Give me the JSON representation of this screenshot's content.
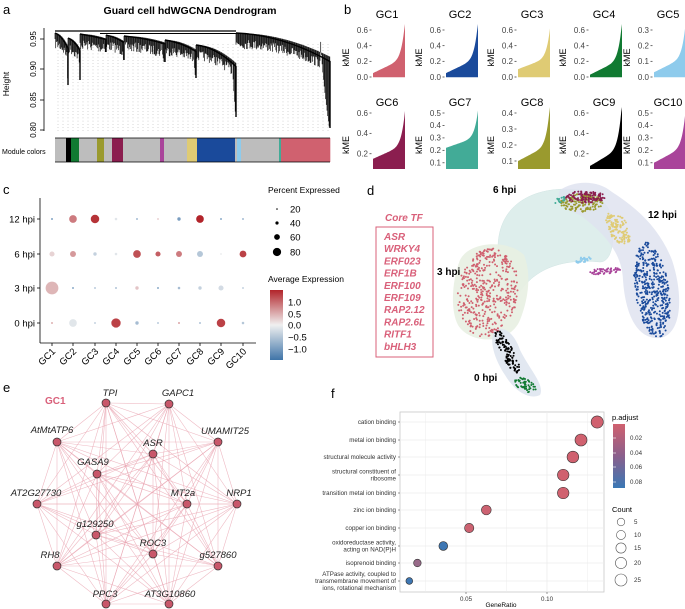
{
  "panel_labels": {
    "a": "a",
    "b": "b",
    "c": "c",
    "d": "d",
    "e": "e",
    "f": "f"
  },
  "panel_a": {
    "title": "Guard cell hdWGCNA Dendrogram",
    "ylabel": "Height",
    "yticks": [
      "0.95",
      "0.90",
      "0.85",
      "0.80"
    ],
    "module_colors_label": "Module colors",
    "module_bar": [
      {
        "color": "#bdbdbd",
        "span": 11
      },
      {
        "color": "#000000",
        "span": 5
      },
      {
        "color": "#117a32",
        "span": 8
      },
      {
        "color": "#bdbdbd",
        "span": 18
      },
      {
        "color": "#9a9a2e",
        "span": 7
      },
      {
        "color": "#bdbdbd",
        "span": 8
      },
      {
        "color": "#8b1e4f",
        "span": 11
      },
      {
        "color": "#bdbdbd",
        "span": 37
      },
      {
        "color": "#a9449a",
        "span": 4
      },
      {
        "color": "#bdbdbd",
        "span": 23
      },
      {
        "color": "#dfcb74",
        "span": 10
      },
      {
        "color": "#1a4a9b",
        "span": 38
      },
      {
        "color": "#bdbdbd",
        "span": 2
      },
      {
        "color": "#8ecbec",
        "span": 4
      },
      {
        "color": "#bdbdbd",
        "span": 38
      },
      {
        "color": "#42ab97",
        "span": 2
      },
      {
        "color": "#d0616f",
        "span": 49
      }
    ]
  },
  "panel_b": {
    "ylabel": "kME",
    "modules": [
      {
        "name": "GC1",
        "color": "#d0616f",
        "yticks": [
          "0.0",
          "0.2",
          "0.4",
          "0.6"
        ],
        "ylim": [
          0,
          0.7
        ],
        "kME_range": [
          0.05,
          0.7
        ]
      },
      {
        "name": "GC2",
        "color": "#1a4a9b",
        "yticks": [
          "0.0",
          "0.2",
          "0.4",
          "0.6"
        ],
        "ylim": [
          0,
          0.7
        ],
        "kME_range": [
          0.05,
          0.7
        ]
      },
      {
        "name": "GC3",
        "color": "#dfcb74",
        "yticks": [
          "0.0",
          "0.2",
          "0.4",
          "0.6"
        ],
        "ylim": [
          0,
          0.65
        ],
        "kME_range": [
          0.1,
          0.62
        ]
      },
      {
        "name": "GC4",
        "color": "#117a32",
        "yticks": [
          "0.0",
          "0.2",
          "0.4",
          "0.6"
        ],
        "ylim": [
          0,
          0.7
        ],
        "kME_range": [
          0.03,
          0.7
        ]
      },
      {
        "name": "GC5",
        "color": "#8ecbec",
        "yticks": [
          "0.0",
          "0.1",
          "0.2",
          "0.3"
        ],
        "ylim": [
          0,
          0.37
        ],
        "kME_range": [
          0.03,
          0.37
        ]
      },
      {
        "name": "GC6",
        "color": "#8b1e4f",
        "yticks": [
          "0.2",
          "0.4",
          "0.6"
        ],
        "ylim": [
          0.05,
          0.62
        ],
        "kME_range": [
          0.15,
          0.62
        ]
      },
      {
        "name": "GC7",
        "color": "#42ab97",
        "yticks": [
          "0.1",
          "0.2",
          "0.3",
          "0.4",
          "0.5"
        ],
        "ylim": [
          0.05,
          0.52
        ],
        "kME_range": [
          0.22,
          0.52
        ]
      },
      {
        "name": "GC8",
        "color": "#9a9a2e",
        "yticks": [
          "0.1",
          "0.2",
          "0.3",
          "0.4"
        ],
        "ylim": [
          0.05,
          0.45
        ],
        "kME_range": [
          0.1,
          0.45
        ]
      },
      {
        "name": "GC9",
        "color": "#000000",
        "yticks": [
          "0.2",
          "0.4",
          "0.6"
        ],
        "ylim": [
          0.05,
          0.7
        ],
        "kME_range": [
          0.08,
          0.7
        ]
      },
      {
        "name": "GC10",
        "color": "#a9449a",
        "yticks": [
          "0.1",
          "0.2",
          "0.3",
          "0.4",
          "0.5"
        ],
        "ylim": [
          0.05,
          0.56
        ],
        "kME_range": [
          0.1,
          0.56
        ]
      }
    ]
  },
  "chart_data": [
    {
      "type": "scatter",
      "panel": "c",
      "categories": [
        "GC1",
        "GC2",
        "GC3",
        "GC4",
        "GC5",
        "GC6",
        "GC7",
        "GC8",
        "GC9",
        "GC10"
      ],
      "rows": [
        "12 hpi",
        "6 hpi",
        "3 hpi",
        "0 hpi"
      ],
      "avg_expression": [
        [
          -1.0,
          0.8,
          1.3,
          -0.1,
          -0.7,
          0.3,
          -0.8,
          1.4,
          -0.9,
          -0.7
        ],
        [
          0.2,
          0.6,
          -0.3,
          -0.1,
          1.1,
          1.0,
          0.8,
          -0.4,
          -0.05,
          1.2
        ],
        [
          0.4,
          -0.9,
          -0.5,
          -0.6,
          0.3,
          -0.9,
          -0.5,
          -0.3,
          -0.2,
          -0.4
        ],
        [
          0.6,
          -0.1,
          -0.4,
          1.2,
          -0.5,
          -0.5,
          0.7,
          -0.6,
          1.2,
          -0.4
        ]
      ],
      "percent_expressed": [
        [
          15,
          60,
          65,
          30,
          25,
          20,
          35,
          60,
          12,
          18
        ],
        [
          45,
          50,
          35,
          30,
          60,
          45,
          50,
          50,
          20,
          55
        ],
        [
          90,
          8,
          4,
          5,
          35,
          18,
          30,
          35,
          45,
          20
        ],
        [
          25,
          60,
          20,
          70,
          35,
          18,
          18,
          18,
          65,
          30
        ]
      ],
      "size_legend": {
        "title": "Percent Expressed",
        "values": [
          20,
          40,
          60,
          80
        ],
        "labels": [
          "20",
          "40",
          "60",
          "80"
        ]
      },
      "color_legend": {
        "title": "Average Expression",
        "labels": [
          "1.0",
          "0.5",
          "0.0",
          "−0.5",
          "−1.0"
        ],
        "high": "#b2242a",
        "mid": "#f0f0f0",
        "low": "#3f74a8"
      }
    },
    {
      "type": "scatter",
      "panel": "f",
      "xlabel": "GeneRatio",
      "xticks": [
        "0.05",
        "0.10"
      ],
      "xtick_values": [
        0.05,
        0.1
      ],
      "xlim": [
        0.009,
        0.137
      ],
      "terms": [
        {
          "label": [
            "cation binding"
          ],
          "gene_ratio": 0.131,
          "count": 26,
          "p_adjust": 0.01
        },
        {
          "label": [
            "metal ion binding"
          ],
          "gene_ratio": 0.121,
          "count": 25,
          "p_adjust": 0.01
        },
        {
          "label": [
            "structural molecule activity"
          ],
          "gene_ratio": 0.116,
          "count": 23,
          "p_adjust": 0.01
        },
        {
          "label": [
            "structural constituent of",
            "ribosome"
          ],
          "gene_ratio": 0.11,
          "count": 22,
          "p_adjust": 0.01
        },
        {
          "label": [
            "transition metal ion binding"
          ],
          "gene_ratio": 0.11,
          "count": 22,
          "p_adjust": 0.01
        },
        {
          "label": [
            "zinc ion binding"
          ],
          "gene_ratio": 0.0625,
          "count": 13,
          "p_adjust": 0.012
        },
        {
          "label": [
            "copper ion binding"
          ],
          "gene_ratio": 0.052,
          "count": 11,
          "p_adjust": 0.012
        },
        {
          "label": [
            "oxidoreductase activity,",
            "acting on NAD(P)H"
          ],
          "gene_ratio": 0.036,
          "count": 9,
          "p_adjust": 0.088
        },
        {
          "label": [
            "isoprenoid binding"
          ],
          "gene_ratio": 0.02,
          "count": 5,
          "p_adjust": 0.04
        },
        {
          "label": [
            "ATPase activity, coupled to",
            "transmembrane movement of",
            "ions, rotational mechanism"
          ],
          "gene_ratio": 0.015,
          "count": 3,
          "p_adjust": 0.088
        }
      ],
      "color_legend": {
        "title": "p.adjust",
        "labels": [
          "0.02",
          "0.04",
          "0.06",
          "0.08"
        ],
        "high": "#d0616f",
        "low": "#3a78b5"
      },
      "size_legend": {
        "title": "Count",
        "labels": [
          "5",
          "10",
          "15",
          "20",
          "25"
        ],
        "values": [
          5,
          10,
          15,
          20,
          25
        ]
      }
    }
  ],
  "panel_d": {
    "core_tf_title": "Core TF",
    "core_tf": [
      "ASR",
      "WRKY4",
      "ERF023",
      "ERF1B",
      "ERF100",
      "ERF109",
      "RAP2.12",
      "RAP2.6L",
      "RITF1",
      "bHLH3"
    ],
    "time_labels": [
      "6 hpi",
      "12 hpi",
      "3 hpi",
      "0 hpi"
    ],
    "accent": "#d9607a"
  },
  "panel_e": {
    "module": "GC1",
    "node_color": "#c8576a",
    "edge_color": "#e9a3b0",
    "nodes": [
      "TPI",
      "GAPC1",
      "AtMtATP6",
      "UMAMIT25",
      "ASR",
      "GASA9",
      "AT2G27730",
      "MT2a",
      "NRP1",
      "g129250",
      "ROC3",
      "RH8",
      "g527860",
      "PPC3",
      "AT3G10860"
    ]
  }
}
